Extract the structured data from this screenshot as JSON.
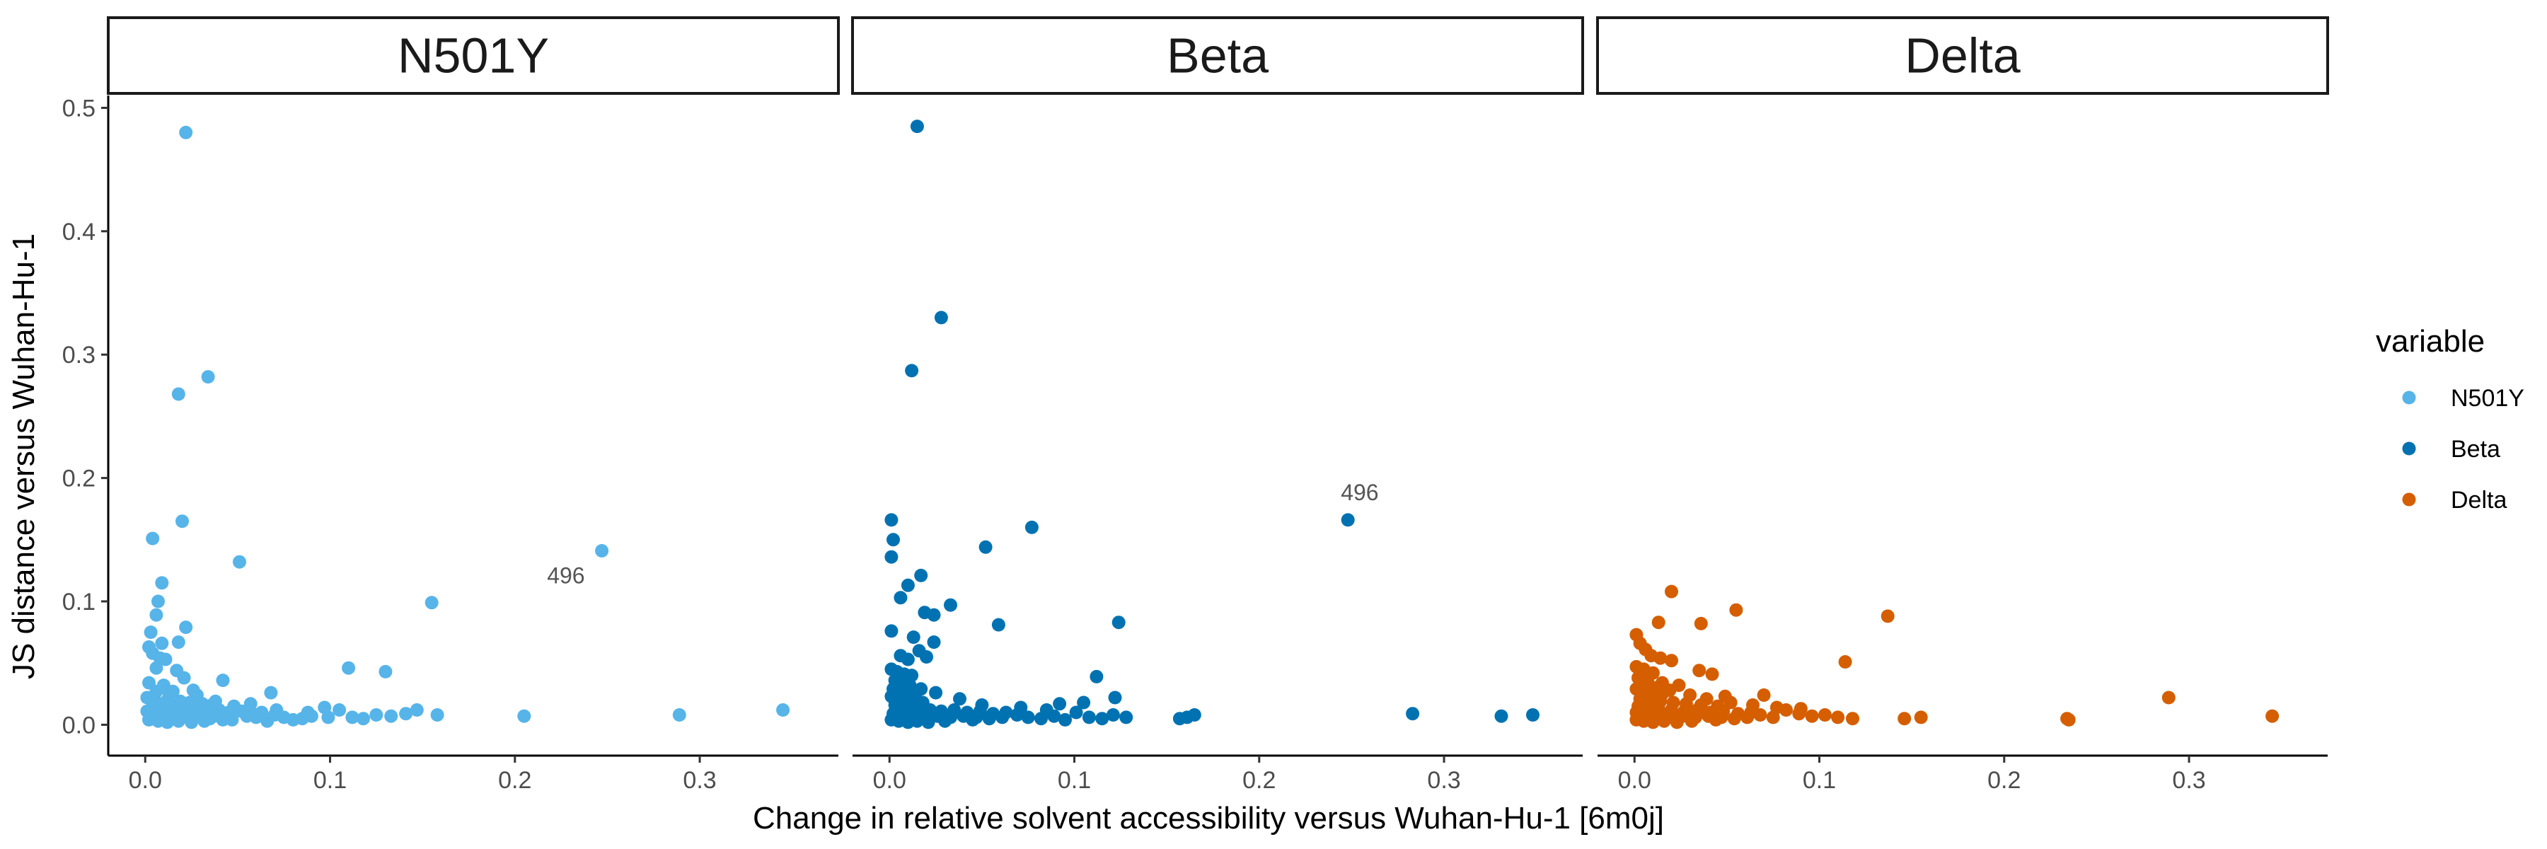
{
  "chart_data": {
    "type": "scatter",
    "facets": [
      "N501Y",
      "Beta",
      "Delta"
    ],
    "xlabel": "Change in relative solvent accessibility versus Wuhan-Hu-1 [6m0j]",
    "ylabel": "JS distance versus Wuhan-Hu-1",
    "xlim": [
      -0.02,
      0.375
    ],
    "ylim": [
      -0.025,
      0.51
    ],
    "x_ticks": [
      0.0,
      0.1,
      0.2,
      0.3
    ],
    "x_tick_labels": [
      "0.0",
      "0.1",
      "0.2",
      "0.3"
    ],
    "y_ticks": [
      0.0,
      0.1,
      0.2,
      0.3,
      0.4,
      0.5
    ],
    "y_tick_labels": [
      "0.0",
      "0.1",
      "0.2",
      "0.3",
      "0.4",
      "0.5"
    ],
    "grid": false,
    "legend": {
      "title": "variable",
      "placement": "right",
      "entries": [
        {
          "label": "N501Y",
          "color": "#56B4E9"
        },
        {
          "label": "Beta",
          "color": "#0072B2"
        },
        {
          "label": "Delta",
          "color": "#D55E00"
        }
      ]
    },
    "series": [
      {
        "name": "N501Y",
        "color": "#56B4E9",
        "points": [
          [
            0.022,
            0.48
          ],
          [
            0.034,
            0.282
          ],
          [
            0.018,
            0.268
          ],
          [
            0.02,
            0.165
          ],
          [
            0.004,
            0.151
          ],
          [
            0.051,
            0.132
          ],
          [
            0.247,
            0.141
          ],
          [
            0.155,
            0.099
          ],
          [
            0.009,
            0.115
          ],
          [
            0.007,
            0.1
          ],
          [
            0.006,
            0.089
          ],
          [
            0.022,
            0.079
          ],
          [
            0.003,
            0.075
          ],
          [
            0.009,
            0.066
          ],
          [
            0.018,
            0.067
          ],
          [
            0.002,
            0.063
          ],
          [
            0.004,
            0.058
          ],
          [
            0.008,
            0.054
          ],
          [
            0.011,
            0.053
          ],
          [
            0.006,
            0.046
          ],
          [
            0.017,
            0.044
          ],
          [
            0.11,
            0.046
          ],
          [
            0.13,
            0.043
          ],
          [
            0.042,
            0.036
          ],
          [
            0.021,
            0.038
          ],
          [
            0.002,
            0.034
          ],
          [
            0.01,
            0.032
          ],
          [
            0.015,
            0.027
          ],
          [
            0.068,
            0.026
          ],
          [
            0.028,
            0.024
          ],
          [
            0.001,
            0.022
          ],
          [
            0.005,
            0.021
          ],
          [
            0.012,
            0.02
          ],
          [
            0.019,
            0.019
          ],
          [
            0.024,
            0.018
          ],
          [
            0.031,
            0.017
          ],
          [
            0.036,
            0.016
          ],
          [
            0.004,
            0.015
          ],
          [
            0.008,
            0.014
          ],
          [
            0.014,
            0.013
          ],
          [
            0.021,
            0.013
          ],
          [
            0.028,
            0.012
          ],
          [
            0.033,
            0.011
          ],
          [
            0.04,
            0.012
          ],
          [
            0.045,
            0.01
          ],
          [
            0.052,
            0.011
          ],
          [
            0.058,
            0.009
          ],
          [
            0.063,
            0.01
          ],
          [
            0.003,
            0.009
          ],
          [
            0.009,
            0.008
          ],
          [
            0.016,
            0.008
          ],
          [
            0.023,
            0.007
          ],
          [
            0.03,
            0.008
          ],
          [
            0.037,
            0.007
          ],
          [
            0.044,
            0.006
          ],
          [
            0.055,
            0.007
          ],
          [
            0.06,
            0.006
          ],
          [
            0.07,
            0.008
          ],
          [
            0.075,
            0.006
          ],
          [
            0.08,
            0.004
          ],
          [
            0.085,
            0.005
          ],
          [
            0.09,
            0.007
          ],
          [
            0.097,
            0.014
          ],
          [
            0.099,
            0.006
          ],
          [
            0.105,
            0.012
          ],
          [
            0.112,
            0.006
          ],
          [
            0.118,
            0.005
          ],
          [
            0.125,
            0.008
          ],
          [
            0.133,
            0.007
          ],
          [
            0.141,
            0.009
          ],
          [
            0.147,
            0.012
          ],
          [
            0.158,
            0.008
          ],
          [
            0.205,
            0.007
          ],
          [
            0.289,
            0.008
          ],
          [
            0.345,
            0.012
          ],
          [
            0.002,
            0.004
          ],
          [
            0.007,
            0.003
          ],
          [
            0.012,
            0.002
          ],
          [
            0.018,
            0.003
          ],
          [
            0.025,
            0.002
          ],
          [
            0.032,
            0.003
          ],
          [
            0.047,
            0.004
          ],
          [
            0.066,
            0.003
          ],
          [
            0.006,
            0.027
          ],
          [
            0.013,
            0.025
          ],
          [
            0.026,
            0.028
          ],
          [
            0.038,
            0.019
          ],
          [
            0.048,
            0.015
          ],
          [
            0.001,
            0.011
          ],
          [
            0.011,
            0.006
          ],
          [
            0.035,
            0.005
          ],
          [
            0.042,
            0.004
          ],
          [
            0.057,
            0.017
          ],
          [
            0.071,
            0.012
          ],
          [
            0.088,
            0.01
          ]
        ]
      },
      {
        "name": "Beta",
        "color": "#0072B2",
        "points": [
          [
            0.015,
            0.485
          ],
          [
            0.028,
            0.33
          ],
          [
            0.012,
            0.287
          ],
          [
            0.248,
            0.166
          ],
          [
            0.001,
            0.166
          ],
          [
            0.077,
            0.16
          ],
          [
            0.002,
            0.15
          ],
          [
            0.052,
            0.144
          ],
          [
            0.001,
            0.136
          ],
          [
            0.017,
            0.121
          ],
          [
            0.01,
            0.113
          ],
          [
            0.006,
            0.103
          ],
          [
            0.033,
            0.097
          ],
          [
            0.019,
            0.091
          ],
          [
            0.024,
            0.089
          ],
          [
            0.124,
            0.083
          ],
          [
            0.059,
            0.081
          ],
          [
            0.001,
            0.076
          ],
          [
            0.013,
            0.071
          ],
          [
            0.024,
            0.067
          ],
          [
            0.016,
            0.06
          ],
          [
            0.006,
            0.056
          ],
          [
            0.01,
            0.053
          ],
          [
            0.02,
            0.055
          ],
          [
            0.001,
            0.045
          ],
          [
            0.004,
            0.043
          ],
          [
            0.008,
            0.041
          ],
          [
            0.012,
            0.04
          ],
          [
            0.112,
            0.039
          ],
          [
            0.003,
            0.036
          ],
          [
            0.007,
            0.034
          ],
          [
            0.011,
            0.032
          ],
          [
            0.002,
            0.029
          ],
          [
            0.005,
            0.027
          ],
          [
            0.009,
            0.026
          ],
          [
            0.014,
            0.025
          ],
          [
            0.001,
            0.023
          ],
          [
            0.004,
            0.021
          ],
          [
            0.008,
            0.02
          ],
          [
            0.013,
            0.019
          ],
          [
            0.018,
            0.018
          ],
          [
            0.122,
            0.022
          ],
          [
            0.092,
            0.017
          ],
          [
            0.003,
            0.016
          ],
          [
            0.006,
            0.015
          ],
          [
            0.011,
            0.014
          ],
          [
            0.016,
            0.013
          ],
          [
            0.022,
            0.012
          ],
          [
            0.028,
            0.011
          ],
          [
            0.035,
            0.012
          ],
          [
            0.042,
            0.01
          ],
          [
            0.049,
            0.011
          ],
          [
            0.056,
            0.009
          ],
          [
            0.063,
            0.01
          ],
          [
            0.002,
            0.009
          ],
          [
            0.007,
            0.008
          ],
          [
            0.012,
            0.007
          ],
          [
            0.019,
            0.008
          ],
          [
            0.026,
            0.007
          ],
          [
            0.033,
            0.006
          ],
          [
            0.04,
            0.007
          ],
          [
            0.047,
            0.006
          ],
          [
            0.054,
            0.005
          ],
          [
            0.061,
            0.006
          ],
          [
            0.069,
            0.008
          ],
          [
            0.075,
            0.006
          ],
          [
            0.082,
            0.005
          ],
          [
            0.089,
            0.007
          ],
          [
            0.095,
            0.004
          ],
          [
            0.101,
            0.01
          ],
          [
            0.108,
            0.006
          ],
          [
            0.115,
            0.005
          ],
          [
            0.121,
            0.008
          ],
          [
            0.128,
            0.006
          ],
          [
            0.157,
            0.005
          ],
          [
            0.161,
            0.006
          ],
          [
            0.165,
            0.008
          ],
          [
            0.283,
            0.009
          ],
          [
            0.331,
            0.007
          ],
          [
            0.348,
            0.008
          ],
          [
            0.001,
            0.004
          ],
          [
            0.005,
            0.003
          ],
          [
            0.01,
            0.002
          ],
          [
            0.015,
            0.003
          ],
          [
            0.021,
            0.002
          ],
          [
            0.03,
            0.003
          ],
          [
            0.045,
            0.004
          ],
          [
            0.003,
            0.031
          ],
          [
            0.017,
            0.029
          ],
          [
            0.025,
            0.026
          ],
          [
            0.038,
            0.021
          ],
          [
            0.05,
            0.016
          ],
          [
            0.071,
            0.014
          ],
          [
            0.085,
            0.012
          ],
          [
            0.105,
            0.018
          ]
        ]
      },
      {
        "name": "Delta",
        "color": "#D55E00",
        "points": [
          [
            0.02,
            0.108
          ],
          [
            0.055,
            0.093
          ],
          [
            0.137,
            0.088
          ],
          [
            0.013,
            0.083
          ],
          [
            0.036,
            0.082
          ],
          [
            0.001,
            0.073
          ],
          [
            0.003,
            0.066
          ],
          [
            0.006,
            0.061
          ],
          [
            0.009,
            0.056
          ],
          [
            0.014,
            0.054
          ],
          [
            0.02,
            0.052
          ],
          [
            0.114,
            0.051
          ],
          [
            0.001,
            0.047
          ],
          [
            0.005,
            0.045
          ],
          [
            0.035,
            0.044
          ],
          [
            0.01,
            0.042
          ],
          [
            0.042,
            0.041
          ],
          [
            0.002,
            0.038
          ],
          [
            0.007,
            0.036
          ],
          [
            0.015,
            0.034
          ],
          [
            0.024,
            0.032
          ],
          [
            0.001,
            0.029
          ],
          [
            0.004,
            0.027
          ],
          [
            0.009,
            0.026
          ],
          [
            0.015,
            0.025
          ],
          [
            0.049,
            0.023
          ],
          [
            0.07,
            0.024
          ],
          [
            0.289,
            0.022
          ],
          [
            0.003,
            0.021
          ],
          [
            0.008,
            0.02
          ],
          [
            0.014,
            0.019
          ],
          [
            0.021,
            0.018
          ],
          [
            0.028,
            0.017
          ],
          [
            0.036,
            0.016
          ],
          [
            0.045,
            0.015
          ],
          [
            0.002,
            0.015
          ],
          [
            0.007,
            0.014
          ],
          [
            0.013,
            0.013
          ],
          [
            0.02,
            0.012
          ],
          [
            0.027,
            0.011
          ],
          [
            0.034,
            0.012
          ],
          [
            0.041,
            0.01
          ],
          [
            0.048,
            0.011
          ],
          [
            0.056,
            0.009
          ],
          [
            0.063,
            0.01
          ],
          [
            0.001,
            0.01
          ],
          [
            0.006,
            0.009
          ],
          [
            0.012,
            0.008
          ],
          [
            0.019,
            0.008
          ],
          [
            0.026,
            0.007
          ],
          [
            0.033,
            0.006
          ],
          [
            0.04,
            0.007
          ],
          [
            0.047,
            0.006
          ],
          [
            0.054,
            0.005
          ],
          [
            0.061,
            0.006
          ],
          [
            0.068,
            0.008
          ],
          [
            0.075,
            0.006
          ],
          [
            0.082,
            0.012
          ],
          [
            0.089,
            0.009
          ],
          [
            0.096,
            0.007
          ],
          [
            0.103,
            0.008
          ],
          [
            0.11,
            0.006
          ],
          [
            0.118,
            0.005
          ],
          [
            0.146,
            0.005
          ],
          [
            0.155,
            0.006
          ],
          [
            0.234,
            0.005
          ],
          [
            0.235,
            0.004
          ],
          [
            0.345,
            0.007
          ],
          [
            0.001,
            0.004
          ],
          [
            0.005,
            0.003
          ],
          [
            0.01,
            0.002
          ],
          [
            0.016,
            0.003
          ],
          [
            0.023,
            0.002
          ],
          [
            0.031,
            0.003
          ],
          [
            0.044,
            0.004
          ],
          [
            0.004,
            0.033
          ],
          [
            0.011,
            0.03
          ],
          [
            0.019,
            0.028
          ],
          [
            0.03,
            0.024
          ],
          [
            0.039,
            0.021
          ],
          [
            0.052,
            0.018
          ],
          [
            0.064,
            0.016
          ],
          [
            0.077,
            0.014
          ],
          [
            0.09,
            0.013
          ]
        ]
      }
    ],
    "annotations": [
      {
        "facet": "N501Y",
        "text": "496"
      },
      {
        "facet": "Beta",
        "text": "496"
      }
    ]
  }
}
